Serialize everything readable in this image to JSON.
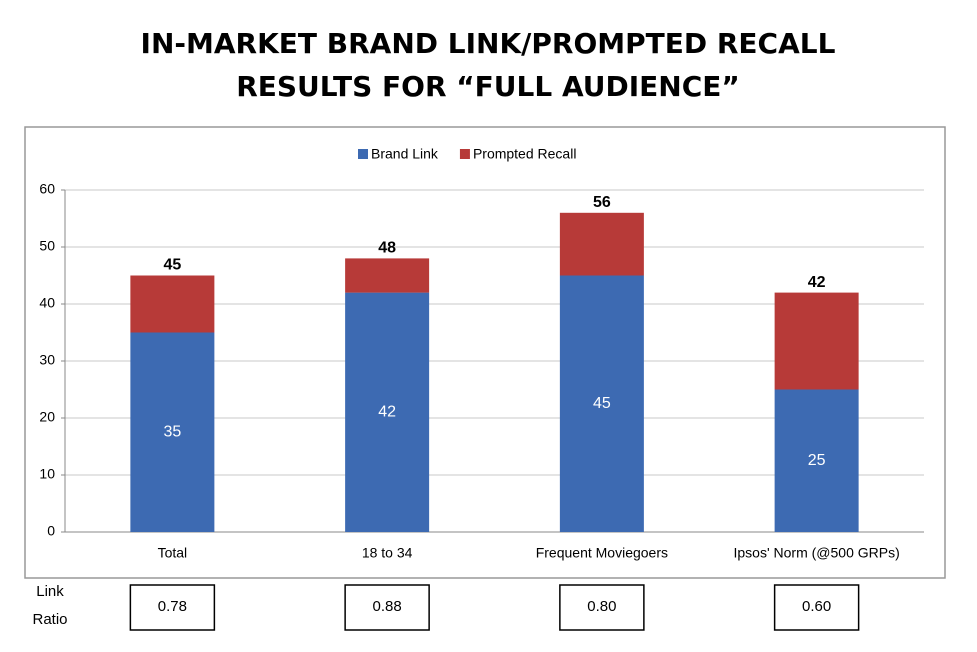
{
  "chart_data": {
    "type": "stacked-bar",
    "title": [
      "IN-MARKET BRAND LINK/PROMPTED RECALL",
      "RESULTS FOR “FULL AUDIENCE”"
    ],
    "categories": [
      "Total",
      "18 to 34",
      "Frequent Moviegoers",
      "Ipsos' Norm (@500 GRPs)"
    ],
    "series": [
      {
        "name": "Brand Link",
        "color": "#3d6ab2",
        "values": [
          35,
          42,
          45,
          25
        ]
      },
      {
        "name": "Prompted Recall",
        "color": "#b73a38",
        "values": [
          10,
          6,
          11,
          17
        ]
      }
    ],
    "total_labels": [
      45,
      48,
      56,
      42
    ],
    "ylim": [
      0,
      60
    ],
    "yticks": [
      0,
      10,
      20,
      30,
      40,
      50,
      60
    ],
    "grid": true,
    "legend": "top",
    "link_ratio": {
      "label": [
        "Link",
        "Ratio"
      ],
      "values": [
        "0.78",
        "0.88",
        "0.80",
        "0.60"
      ]
    }
  }
}
